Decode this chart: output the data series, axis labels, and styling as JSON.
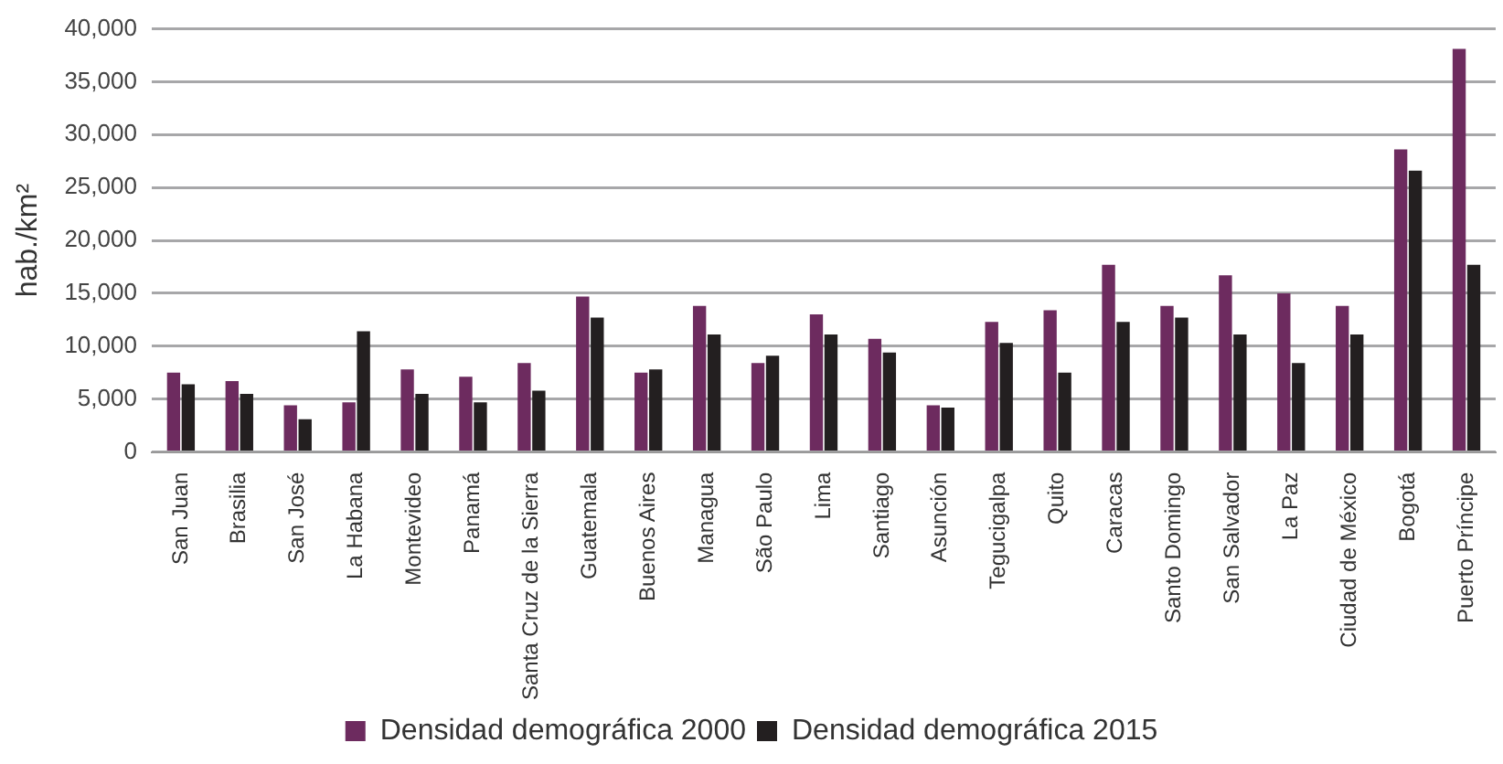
{
  "chart_data": {
    "type": "bar",
    "ylabel": "hab./km²",
    "categories": [
      "San Juan",
      "Brasilia",
      "San José",
      "La Habana",
      "Montevideo",
      "Panamá",
      "Santa Cruz de la Sierra",
      "Guatemala",
      "Buenos Aires",
      "Managua",
      "São Paulo",
      "Lima",
      "Santiago",
      "Asunción",
      "Tegucigalpa",
      "Quito",
      "Caracas",
      "Santo Domingo",
      "San Salvador",
      "La Paz",
      "Ciudad de México",
      "Bogotá",
      "Puerto Príncipe"
    ],
    "series": [
      {
        "name": "Densidad demográfica 2000",
        "color": "#6d2b5f",
        "values": [
          7500,
          6700,
          4400,
          4700,
          7800,
          7100,
          8400,
          14700,
          7500,
          13800,
          8400,
          13000,
          10700,
          4400,
          12300,
          13400,
          17700,
          13800,
          16700,
          15000,
          13800,
          28600,
          38100
        ]
      },
      {
        "name": "Densidad demográfica 2015",
        "color": "#231f20",
        "values": [
          6400,
          5500,
          3100,
          11400,
          5500,
          4700,
          5800,
          12700,
          7800,
          11100,
          9100,
          11100,
          9400,
          4200,
          10300,
          7500,
          12300,
          12700,
          11100,
          8400,
          11100,
          26600,
          17700
        ]
      }
    ],
    "ylim": [
      0,
      40000
    ],
    "yticks": [
      {
        "value": 0,
        "label": "0"
      },
      {
        "value": 5000,
        "label": "5,000"
      },
      {
        "value": 10000,
        "label": "10,000"
      },
      {
        "value": 15000,
        "label": "15,000"
      },
      {
        "value": 20000,
        "label": "20,000"
      },
      {
        "value": 25000,
        "label": "25,000"
      },
      {
        "value": 30000,
        "label": "30,000"
      },
      {
        "value": 35000,
        "label": "35,000"
      },
      {
        "value": 40000,
        "label": "40,000"
      }
    ],
    "grid": "y",
    "legend": "bottom"
  }
}
